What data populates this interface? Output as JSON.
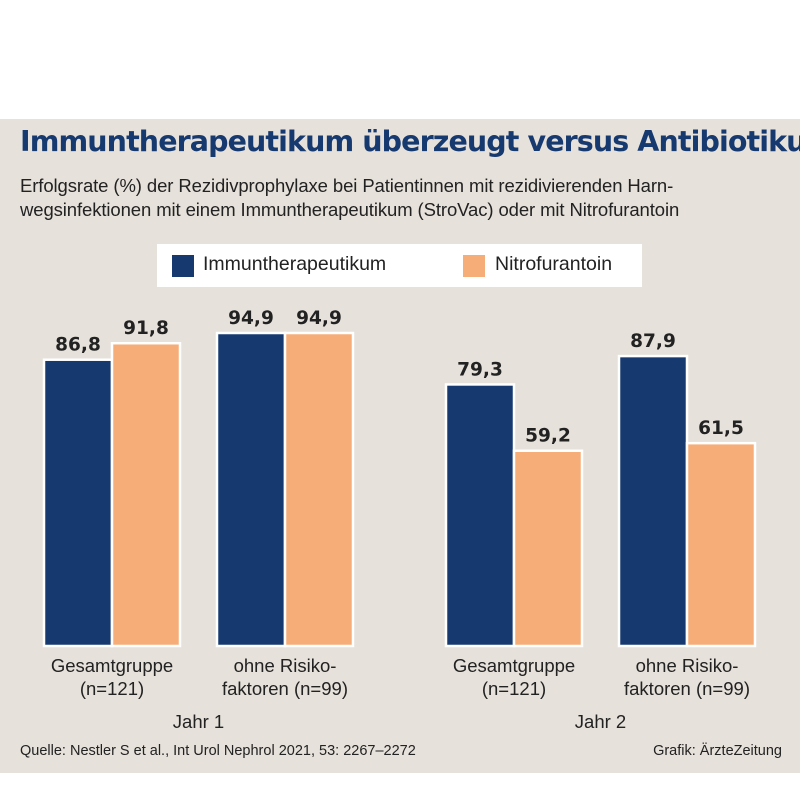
{
  "title": "Immuntherapeutikum überzeugt versus Antibiotikum",
  "subtitle_line1": "Erfolgsrate (%) der Rezidivprophylaxe bei Patientinnen mit rezidivierenden Harn-",
  "subtitle_line2": "wegsinfektionen mit einem Immuntherapeutikum (StroVac) oder mit Nitrofurantoin",
  "source": "Quelle: Nestler S et al., Int Urol Nephrol 2021, 53: 2267–2272",
  "credit": "Grafik: ÄrzteZeitung",
  "colors": {
    "immun": "#163a70",
    "nitro": "#f6ad78",
    "panel": "#e6e1da"
  },
  "chart_data": {
    "type": "bar",
    "title": "Immuntherapeutikum überzeugt versus Antibiotikum",
    "ylabel": "",
    "ylim": [
      0,
      100
    ],
    "grid": false,
    "legend_position": "top-center",
    "groups": [
      {
        "label": "Jahr 1",
        "categories": [
          {
            "line1": "Gesamtgruppe",
            "line2": "(n=121)"
          },
          {
            "line1": "ohne Risiko-",
            "line2": "faktoren (n=99)"
          }
        ]
      },
      {
        "label": "Jahr 2",
        "categories": [
          {
            "line1": "Gesamtgruppe",
            "line2": "(n=121)"
          },
          {
            "line1": "ohne Risiko-",
            "line2": "faktoren (n=99)"
          }
        ]
      }
    ],
    "series": [
      {
        "name": "Immuntherapeutikum",
        "values": [
          86.8,
          94.9,
          79.3,
          87.9
        ],
        "labels": [
          "86,8",
          "94,9",
          "79,3",
          "87,9"
        ]
      },
      {
        "name": "Nitrofurantoin",
        "values": [
          91.8,
          94.9,
          59.2,
          61.5
        ],
        "labels": [
          "91,8",
          "94,9",
          "59,2",
          "61,5"
        ]
      }
    ]
  }
}
